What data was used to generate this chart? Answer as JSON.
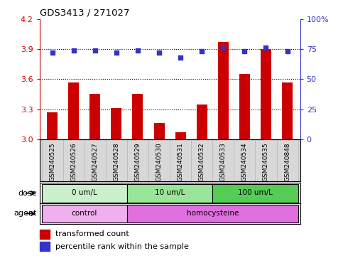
{
  "title": "GDS3413 / 271027",
  "samples": [
    "GSM240525",
    "GSM240526",
    "GSM240527",
    "GSM240528",
    "GSM240529",
    "GSM240530",
    "GSM240531",
    "GSM240532",
    "GSM240533",
    "GSM240534",
    "GSM240535",
    "GSM240848"
  ],
  "transformed_count": [
    3.27,
    3.57,
    3.45,
    3.31,
    3.45,
    3.16,
    3.07,
    3.35,
    3.97,
    3.65,
    3.9,
    3.57
  ],
  "percentile_rank": [
    72,
    74,
    74,
    72,
    74,
    72,
    68,
    73,
    76,
    73,
    76,
    73
  ],
  "ylim_left": [
    3.0,
    4.2
  ],
  "ylim_right": [
    0,
    100
  ],
  "yticks_left": [
    3.0,
    3.3,
    3.6,
    3.9,
    4.2
  ],
  "yticks_right": [
    0,
    25,
    50,
    75,
    100
  ],
  "bar_color": "#cc0000",
  "dot_color": "#3333cc",
  "hline_values": [
    3.3,
    3.6,
    3.9
  ],
  "dose_groups": [
    {
      "label": "0 um/L",
      "start": 0,
      "end": 4,
      "color": "#ccf0cc"
    },
    {
      "label": "10 um/L",
      "start": 4,
      "end": 8,
      "color": "#99e699"
    },
    {
      "label": "100 um/L",
      "start": 8,
      "end": 12,
      "color": "#55cc55"
    }
  ],
  "agent_groups": [
    {
      "label": "control",
      "start": 0,
      "end": 4,
      "color": "#f0b0f0"
    },
    {
      "label": "homocysteine",
      "start": 4,
      "end": 12,
      "color": "#e070e0"
    }
  ],
  "legend_bar_label": "transformed count",
  "legend_dot_label": "percentile rank within the sample",
  "xlabel_dose": "dose",
  "xlabel_agent": "agent",
  "background_color": "#ffffff",
  "tick_color_left": "#cc0000",
  "tick_color_right": "#3333cc",
  "sample_bg_color": "#d8d8d8"
}
